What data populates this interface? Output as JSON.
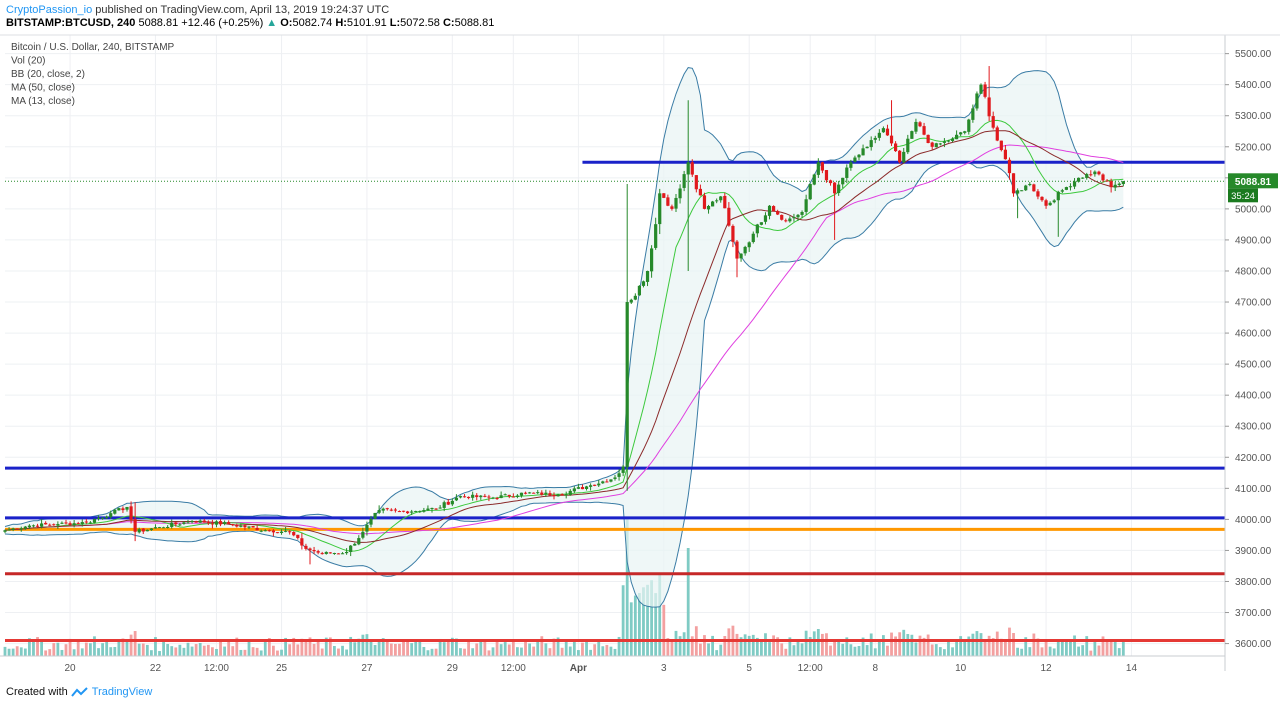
{
  "header": {
    "author": "CryptoPassion_io",
    "published_text": "published on TradingView.com, April 13, 2019 19:24:37 UTC",
    "symbol": "BITSTAMP:BTCUSD",
    "interval": "240",
    "price": "5088.81",
    "change": "+12.46 (+0.25%)",
    "o_label": "O:",
    "o": "5082.74",
    "h_label": "H:",
    "h": "5101.91",
    "l_label": "L:",
    "l": "5072.58",
    "c_label": "C:",
    "c": "5088.81"
  },
  "footer": {
    "created_with": "Created with",
    "brand": "TradingView"
  },
  "chart_data": {
    "type": "candlestick",
    "legend": [
      "Bitcoin / U.S. Dollar, 240, BITSTAMP",
      "Vol (20)",
      "BB (20, close, 2)",
      "MA (50, close)",
      "MA (13, close)"
    ],
    "y_axis": {
      "min": 3560,
      "max": 5560,
      "ticks": [
        3600,
        3700,
        3800,
        3900,
        4000,
        4100,
        4200,
        4300,
        4400,
        4500,
        4600,
        4700,
        4800,
        4900,
        5000,
        5100,
        5200,
        5300,
        5400,
        5500
      ]
    },
    "x_axis": {
      "range": [
        0,
        300
      ],
      "ticks": [
        {
          "x": 16,
          "label": "20"
        },
        {
          "x": 37,
          "label": "22"
        },
        {
          "x": 52,
          "label": "12:00"
        },
        {
          "x": 68,
          "label": "25"
        },
        {
          "x": 89,
          "label": "27"
        },
        {
          "x": 110,
          "label": "29"
        },
        {
          "x": 125,
          "label": "12:00"
        },
        {
          "x": 141,
          "label": "Apr"
        },
        {
          "x": 162,
          "label": "3"
        },
        {
          "x": 183,
          "label": "5"
        },
        {
          "x": 198,
          "label": "12:00"
        },
        {
          "x": 214,
          "label": "8"
        },
        {
          "x": 235,
          "label": "10"
        },
        {
          "x": 256,
          "label": "12"
        },
        {
          "x": 277,
          "label": "14"
        }
      ]
    },
    "last_price": {
      "value": 5088.81,
      "label": "5088.81",
      "countdown": "35:24"
    },
    "horizontal_lines": [
      {
        "y": 5150,
        "x_start": 142,
        "color": "#1a22c9"
      },
      {
        "y": 4165,
        "x_start": 0,
        "color": "#1a22c9"
      },
      {
        "y": 4005,
        "x_start": 0,
        "color": "#1a22c9"
      },
      {
        "y": 3968,
        "x_start": 0,
        "color": "#ff9800"
      },
      {
        "y": 3825,
        "x_start": 0,
        "color": "#c62828"
      },
      {
        "y": 3610,
        "x_start": 0,
        "color": "#e53935"
      }
    ],
    "colors": {
      "up": "#26892a",
      "down": "#e0191d",
      "vol_up": "#7fcbc4",
      "vol_down": "#f3a0a0",
      "ma50": "#e040e0",
      "ma13_green": "#3cc93c",
      "ma13_dark": "#8b2a2a",
      "bb": "#3a7ca5",
      "bb_fill": "#e8f4f4"
    },
    "anchors": [
      {
        "x": 0,
        "c": 3965
      },
      {
        "x": 6,
        "c": 3980
      },
      {
        "x": 13,
        "c": 3985
      },
      {
        "x": 20,
        "c": 3990
      },
      {
        "x": 26,
        "c": 4020
      },
      {
        "x": 30,
        "c": 4040
      },
      {
        "x": 32,
        "c": 3960
      },
      {
        "x": 38,
        "c": 3975
      },
      {
        "x": 46,
        "c": 3995
      },
      {
        "x": 55,
        "c": 3985
      },
      {
        "x": 64,
        "c": 3965
      },
      {
        "x": 70,
        "c": 3960
      },
      {
        "x": 74,
        "c": 3905
      },
      {
        "x": 78,
        "c": 3890
      },
      {
        "x": 84,
        "c": 3895
      },
      {
        "x": 88,
        "c": 3960
      },
      {
        "x": 92,
        "c": 4030
      },
      {
        "x": 98,
        "c": 4025
      },
      {
        "x": 106,
        "c": 4035
      },
      {
        "x": 112,
        "c": 4075
      },
      {
        "x": 120,
        "c": 4070
      },
      {
        "x": 128,
        "c": 4085
      },
      {
        "x": 136,
        "c": 4080
      },
      {
        "x": 144,
        "c": 4110
      },
      {
        "x": 150,
        "c": 4135
      },
      {
        "x": 152,
        "c": 4170
      },
      {
        "x": 153,
        "c": 4700
      },
      {
        "x": 155,
        "c": 4720
      },
      {
        "x": 158,
        "c": 4800
      },
      {
        "x": 161,
        "c": 5050
      },
      {
        "x": 164,
        "c": 5000
      },
      {
        "x": 168,
        "c": 5150
      },
      {
        "x": 172,
        "c": 5000
      },
      {
        "x": 176,
        "c": 5040
      },
      {
        "x": 180,
        "c": 4840
      },
      {
        "x": 184,
        "c": 4920
      },
      {
        "x": 188,
        "c": 5010
      },
      {
        "x": 192,
        "c": 4960
      },
      {
        "x": 196,
        "c": 4990
      },
      {
        "x": 200,
        "c": 5150
      },
      {
        "x": 204,
        "c": 5050
      },
      {
        "x": 208,
        "c": 5150
      },
      {
        "x": 212,
        "c": 5200
      },
      {
        "x": 216,
        "c": 5260
      },
      {
        "x": 220,
        "c": 5150
      },
      {
        "x": 224,
        "c": 5280
      },
      {
        "x": 228,
        "c": 5200
      },
      {
        "x": 232,
        "c": 5220
      },
      {
        "x": 236,
        "c": 5250
      },
      {
        "x": 240,
        "c": 5400
      },
      {
        "x": 244,
        "c": 5220
      },
      {
        "x": 246,
        "c": 5160
      },
      {
        "x": 248,
        "c": 5050
      },
      {
        "x": 252,
        "c": 5080
      },
      {
        "x": 256,
        "c": 5010
      },
      {
        "x": 260,
        "c": 5060
      },
      {
        "x": 264,
        "c": 5100
      },
      {
        "x": 268,
        "c": 5120
      },
      {
        "x": 272,
        "c": 5070
      },
      {
        "x": 275,
        "c": 5089
      }
    ],
    "spikes": [
      {
        "x": 32,
        "h": 4055,
        "l": 3930
      },
      {
        "x": 75,
        "l": 3855
      },
      {
        "x": 153,
        "h": 5080
      },
      {
        "x": 168,
        "h": 5350,
        "l": 4800
      },
      {
        "x": 180,
        "l": 4780
      },
      {
        "x": 204,
        "l": 4900
      },
      {
        "x": 218,
        "h": 5350
      },
      {
        "x": 242,
        "h": 5460
      },
      {
        "x": 249,
        "l": 4970
      },
      {
        "x": 259,
        "l": 4910
      }
    ]
  }
}
